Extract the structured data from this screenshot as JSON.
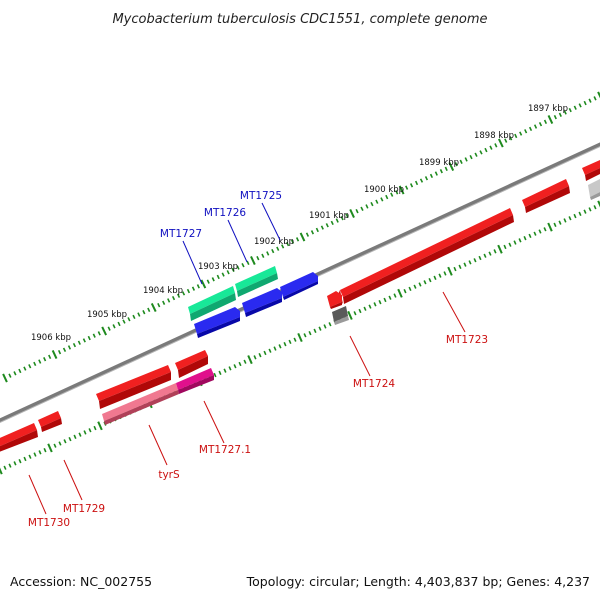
{
  "title": "Mycobacterium tuberculosis CDC1551, complete genome",
  "footer": {
    "accession": "Accession: NC_002755",
    "topology": "Topology: circular; Length: 4,403,837 bp; Genes: 4,237"
  },
  "ticks": [
    "1897 kbp",
    "1898 kbp",
    "1899 kbp",
    "1900 kbp",
    "1901 kbp",
    "1902 kbp",
    "1903 kbp",
    "1904 kbp",
    "1905 kbp",
    "1906 kbp"
  ],
  "genes": {
    "forward": [
      "MT1725",
      "MT1726",
      "MT1727"
    ],
    "reverse": [
      "MT1723",
      "MT1724",
      "MT1727.1",
      "tyrS",
      "MT1729",
      "MT1730"
    ]
  },
  "colors": {
    "backbone": "#8a8a8a",
    "ruler": "#1e8a1e",
    "forward_label": "#1010c0",
    "reverse_label": "#cc1010",
    "red_gene": "#ee1010",
    "pink_gene": "#ee5a7a",
    "magenta_gene": "#e0108c",
    "blue_gene": "#1010e0",
    "teal_gene": "#18e898",
    "grey_gene": "#6a6a6a",
    "light_grey_gene": "#c0c0c0"
  }
}
